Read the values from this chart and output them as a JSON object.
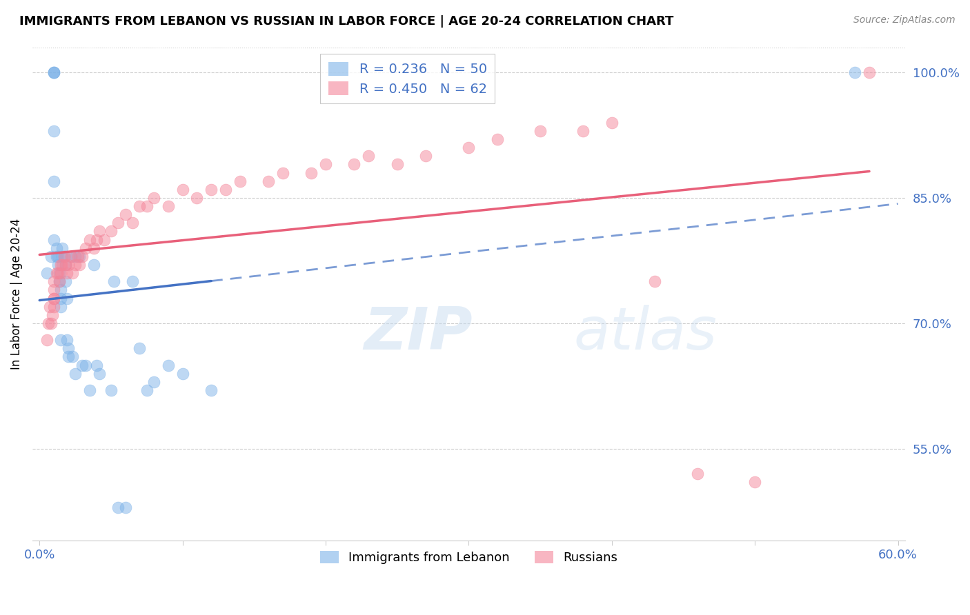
{
  "title": "IMMIGRANTS FROM LEBANON VS RUSSIAN IN LABOR FORCE | AGE 20-24 CORRELATION CHART",
  "source": "Source: ZipAtlas.com",
  "ylabel": "In Labor Force | Age 20-24",
  "legend_label1": "Immigrants from Lebanon",
  "legend_label2": "Russians",
  "R1": 0.236,
  "N1": 50,
  "R2": 0.45,
  "N2": 62,
  "watermark": "ZIPatlas",
  "xlim": [
    -0.005,
    0.605
  ],
  "ylim": [
    0.44,
    1.03
  ],
  "yticks": [
    0.55,
    0.7,
    0.85,
    1.0
  ],
  "ytick_labels": [
    "55.0%",
    "70.0%",
    "85.0%",
    "100.0%"
  ],
  "xticks": [
    0.0,
    0.1,
    0.2,
    0.3,
    0.4,
    0.5,
    0.6
  ],
  "xtick_labels": [
    "0.0%",
    "",
    "",
    "",
    "",
    "",
    "60.0%"
  ],
  "color_blue": "#7EB3E8",
  "color_pink": "#F4869A",
  "color_trend_blue": "#4472C4",
  "color_trend_pink": "#E8607A",
  "color_axis_text": "#4472C4",
  "lebanon_x": [
    0.005,
    0.008,
    0.01,
    0.01,
    0.01,
    0.01,
    0.01,
    0.01,
    0.012,
    0.012,
    0.013,
    0.013,
    0.014,
    0.014,
    0.015,
    0.015,
    0.015,
    0.015,
    0.016,
    0.016,
    0.017,
    0.018,
    0.018,
    0.019,
    0.019,
    0.02,
    0.02,
    0.022,
    0.023,
    0.025,
    0.025,
    0.028,
    0.03,
    0.032,
    0.035,
    0.038,
    0.04,
    0.042,
    0.05,
    0.052,
    0.055,
    0.06,
    0.065,
    0.07,
    0.075,
    0.08,
    0.09,
    0.1,
    0.12,
    0.57
  ],
  "lebanon_y": [
    0.76,
    0.78,
    1.0,
    1.0,
    1.0,
    0.93,
    0.87,
    0.8,
    0.79,
    0.78,
    0.78,
    0.77,
    0.76,
    0.75,
    0.74,
    0.73,
    0.72,
    0.68,
    0.79,
    0.78,
    0.78,
    0.77,
    0.75,
    0.73,
    0.68,
    0.67,
    0.66,
    0.78,
    0.66,
    0.78,
    0.64,
    0.78,
    0.65,
    0.65,
    0.62,
    0.77,
    0.65,
    0.64,
    0.62,
    0.75,
    0.48,
    0.48,
    0.75,
    0.67,
    0.62,
    0.63,
    0.65,
    0.64,
    0.62,
    1.0
  ],
  "russian_x": [
    0.005,
    0.006,
    0.007,
    0.008,
    0.009,
    0.01,
    0.01,
    0.01,
    0.01,
    0.01,
    0.012,
    0.013,
    0.014,
    0.015,
    0.015,
    0.016,
    0.017,
    0.018,
    0.019,
    0.02,
    0.022,
    0.023,
    0.025,
    0.027,
    0.028,
    0.03,
    0.032,
    0.035,
    0.038,
    0.04,
    0.042,
    0.045,
    0.05,
    0.055,
    0.06,
    0.065,
    0.07,
    0.075,
    0.08,
    0.09,
    0.1,
    0.11,
    0.12,
    0.13,
    0.14,
    0.16,
    0.17,
    0.19,
    0.2,
    0.22,
    0.23,
    0.25,
    0.27,
    0.3,
    0.32,
    0.35,
    0.38,
    0.4,
    0.43,
    0.46,
    0.5,
    0.58
  ],
  "russian_y": [
    0.68,
    0.7,
    0.72,
    0.7,
    0.71,
    0.72,
    0.73,
    0.74,
    0.75,
    0.73,
    0.76,
    0.76,
    0.75,
    0.77,
    0.76,
    0.77,
    0.78,
    0.77,
    0.76,
    0.77,
    0.78,
    0.76,
    0.77,
    0.78,
    0.77,
    0.78,
    0.79,
    0.8,
    0.79,
    0.8,
    0.81,
    0.8,
    0.81,
    0.82,
    0.83,
    0.82,
    0.84,
    0.84,
    0.85,
    0.84,
    0.86,
    0.85,
    0.86,
    0.86,
    0.87,
    0.87,
    0.88,
    0.88,
    0.89,
    0.89,
    0.9,
    0.89,
    0.9,
    0.91,
    0.92,
    0.93,
    0.93,
    0.94,
    0.75,
    0.52,
    0.51,
    1.0
  ]
}
